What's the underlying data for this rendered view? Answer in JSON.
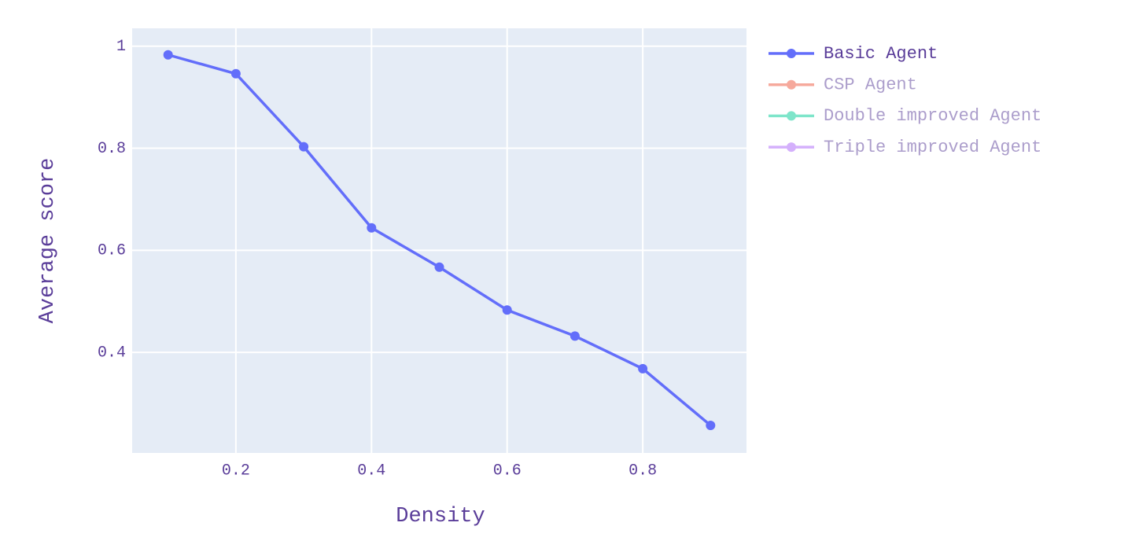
{
  "chart_data": {
    "type": "line",
    "x_label": "Density",
    "y_label": "Average score",
    "x": [
      0.1,
      0.2,
      0.3,
      0.4,
      0.5,
      0.6,
      0.7,
      0.8,
      0.9
    ],
    "series": [
      {
        "name": "Basic Agent",
        "color": "#636efa",
        "values": [
          0.983,
          0.946,
          0.803,
          0.644,
          0.567,
          0.483,
          0.432,
          0.368,
          0.257
        ]
      },
      {
        "name": "CSP Agent",
        "color": "#ef553b",
        "visible": "legendonly"
      },
      {
        "name": "Double improved Agent",
        "color": "#00cc96",
        "visible": "legendonly"
      },
      {
        "name": "Triple improved Agent",
        "color": "#ab63fa",
        "visible": "legendonly"
      }
    ],
    "xlim": [
      0.047,
      0.953
    ],
    "xticks": [
      0.2,
      0.4,
      0.6,
      0.8
    ],
    "ylim": [
      0.203,
      1.035
    ],
    "yticks": [
      0.4,
      0.6,
      0.8,
      1
    ],
    "grid": true,
    "legend": "right"
  }
}
